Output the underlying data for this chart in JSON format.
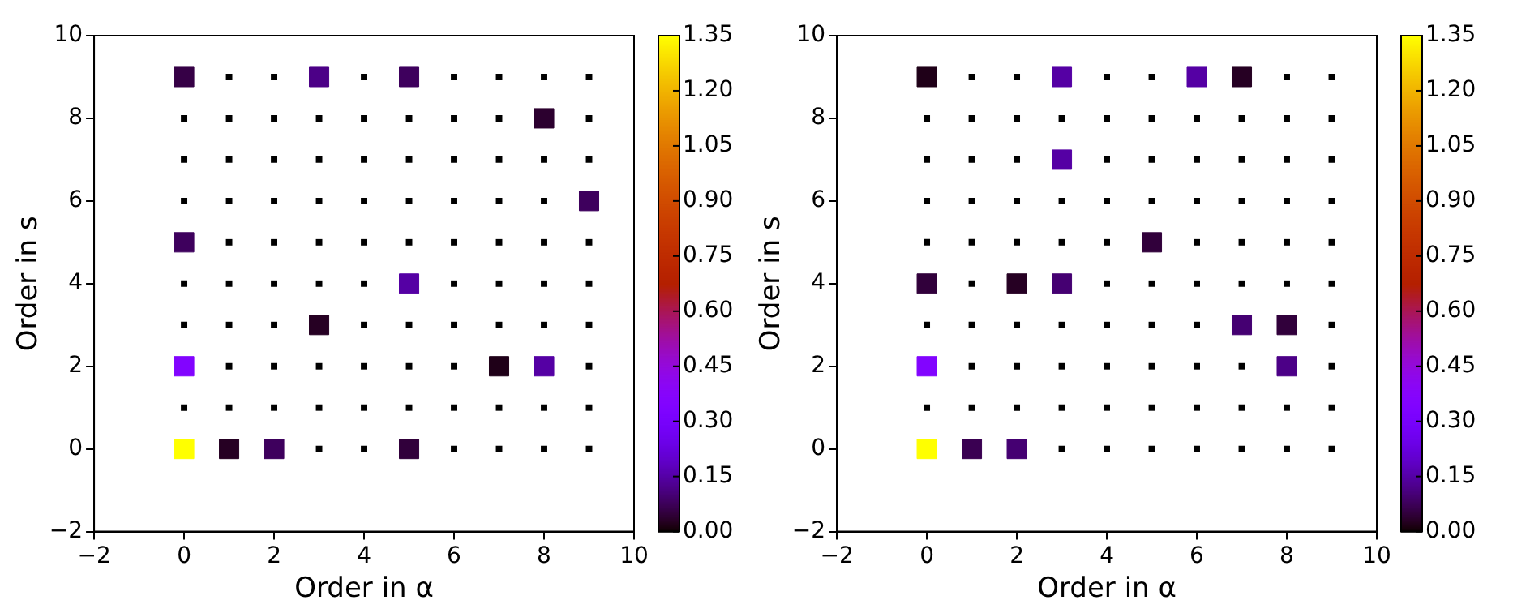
{
  "chart_data": [
    {
      "type": "scatter",
      "xlabel": "Order in α",
      "ylabel": "Order in s",
      "xlim": [
        -2,
        10
      ],
      "ylim": [
        -2,
        10
      ],
      "xticks": [
        -2,
        0,
        2,
        4,
        6,
        8,
        10
      ],
      "yticks": [
        -2,
        0,
        2,
        4,
        6,
        8,
        10
      ],
      "grid": false,
      "legend": false,
      "clim": [
        0,
        1.35
      ],
      "cticks": [
        {
          "value": 0,
          "label": "0.00"
        },
        {
          "value": 0.15,
          "label": "0.15"
        },
        {
          "value": 0.3,
          "label": "0.30"
        },
        {
          "value": 0.45,
          "label": "0.45"
        },
        {
          "value": 0.6,
          "label": "0.60"
        },
        {
          "value": 0.75,
          "label": "0.75"
        },
        {
          "value": 0.9,
          "label": "0.90"
        },
        {
          "value": 1.05,
          "label": "1.05"
        },
        {
          "value": 1.2,
          "label": "1.20"
        },
        {
          "value": 1.35,
          "label": "1.35"
        }
      ],
      "series": [
        {
          "color": "#000000",
          "marker": "square",
          "x": [
            3,
            4,
            6,
            7,
            8,
            9,
            0,
            1,
            2,
            3,
            4,
            5,
            6,
            7,
            8,
            9,
            1,
            2,
            3,
            4,
            5,
            6,
            9,
            0,
            1,
            2,
            4,
            5,
            6,
            7,
            8,
            9,
            0,
            1,
            2,
            3,
            4,
            6,
            7,
            8,
            9,
            1,
            2,
            3,
            4,
            5,
            6,
            7,
            8,
            9,
            0,
            1,
            2,
            3,
            4,
            5,
            6,
            7,
            8,
            0,
            1,
            2,
            3,
            4,
            5,
            6,
            7,
            8,
            9,
            0,
            1,
            2,
            3,
            4,
            5,
            6,
            7,
            9,
            1,
            2,
            4,
            6,
            7,
            8,
            9
          ],
          "values": [
            0,
            0,
            0,
            0,
            0,
            0,
            1,
            1,
            1,
            1,
            1,
            1,
            1,
            1,
            1,
            1,
            2,
            2,
            2,
            2,
            2,
            2,
            2,
            3,
            3,
            3,
            3,
            3,
            3,
            3,
            3,
            3,
            4,
            4,
            4,
            4,
            4,
            4,
            4,
            4,
            4,
            5,
            5,
            5,
            5,
            5,
            5,
            5,
            5,
            5,
            6,
            6,
            6,
            6,
            6,
            6,
            6,
            6,
            6,
            7,
            7,
            7,
            7,
            7,
            7,
            7,
            7,
            7,
            7,
            8,
            8,
            8,
            8,
            8,
            8,
            8,
            8,
            8,
            9,
            9,
            9,
            9,
            9,
            9,
            9
          ]
        },
        {
          "marker": "square",
          "x": [
            0,
            1,
            2,
            5,
            0,
            7,
            8,
            3,
            5,
            0,
            9,
            8,
            0,
            3,
            5
          ],
          "values": [
            0,
            0,
            0,
            0,
            2,
            2,
            2,
            3,
            4,
            5,
            6,
            8,
            9,
            9,
            9
          ],
          "cvalues": [
            1.35,
            0.03,
            0.08,
            0.05,
            0.35,
            0.02,
            0.15,
            0.03,
            0.15,
            0.08,
            0.08,
            0.04,
            0.06,
            0.12,
            0.08
          ],
          "colors": [
            "#ffff00",
            "#260023",
            "#3e005d",
            "#31003b",
            "#8204ff",
            "#1f0018",
            "#5500a4",
            "#260023",
            "#5500a4",
            "#3e005d",
            "#3e005d",
            "#2c002f",
            "#360046",
            "#4c0087",
            "#3e005d"
          ]
        }
      ]
    },
    {
      "type": "scatter",
      "xlabel": "Order in α",
      "ylabel": "Order in s",
      "xlim": [
        -2,
        10
      ],
      "ylim": [
        -2,
        10
      ],
      "xticks": [
        -2,
        0,
        2,
        4,
        6,
        8,
        10
      ],
      "yticks": [
        -2,
        0,
        2,
        4,
        6,
        8,
        10
      ],
      "grid": false,
      "legend": false,
      "clim": [
        0,
        1.35
      ],
      "cticks": [
        {
          "value": 0,
          "label": "0.00"
        },
        {
          "value": 0.15,
          "label": "0.15"
        },
        {
          "value": 0.3,
          "label": "0.30"
        },
        {
          "value": 0.45,
          "label": "0.45"
        },
        {
          "value": 0.6,
          "label": "0.60"
        },
        {
          "value": 0.75,
          "label": "0.75"
        },
        {
          "value": 0.9,
          "label": "0.90"
        },
        {
          "value": 1.05,
          "label": "1.05"
        },
        {
          "value": 1.2,
          "label": "1.20"
        },
        {
          "value": 1.35,
          "label": "1.35"
        }
      ],
      "series": [
        {
          "color": "#000000",
          "marker": "square",
          "x": [
            3,
            4,
            5,
            6,
            7,
            8,
            9,
            0,
            1,
            2,
            3,
            4,
            5,
            6,
            7,
            8,
            9,
            1,
            2,
            3,
            4,
            5,
            6,
            7,
            9,
            0,
            1,
            2,
            3,
            4,
            5,
            6,
            9,
            1,
            4,
            5,
            6,
            7,
            8,
            9,
            0,
            1,
            2,
            3,
            4,
            6,
            7,
            8,
            9,
            0,
            1,
            2,
            3,
            4,
            5,
            6,
            7,
            8,
            9,
            0,
            1,
            2,
            4,
            5,
            6,
            7,
            8,
            9,
            0,
            1,
            2,
            3,
            4,
            5,
            6,
            7,
            8,
            9,
            1,
            2,
            4,
            5,
            8,
            9
          ],
          "values": [
            0,
            0,
            0,
            0,
            0,
            0,
            0,
            1,
            1,
            1,
            1,
            1,
            1,
            1,
            1,
            1,
            1,
            2,
            2,
            2,
            2,
            2,
            2,
            2,
            2,
            3,
            3,
            3,
            3,
            3,
            3,
            3,
            3,
            4,
            4,
            4,
            4,
            4,
            4,
            4,
            5,
            5,
            5,
            5,
            5,
            5,
            5,
            5,
            5,
            6,
            6,
            6,
            6,
            6,
            6,
            6,
            6,
            6,
            6,
            7,
            7,
            7,
            7,
            7,
            7,
            7,
            7,
            7,
            8,
            8,
            8,
            8,
            8,
            8,
            8,
            8,
            8,
            8,
            9,
            9,
            9,
            9,
            9,
            9
          ]
        },
        {
          "marker": "square",
          "x": [
            0,
            1,
            2,
            0,
            8,
            7,
            8,
            0,
            2,
            3,
            5,
            3,
            0,
            3,
            6,
            7
          ],
          "values": [
            0,
            0,
            0,
            2,
            2,
            3,
            3,
            4,
            4,
            4,
            5,
            7,
            9,
            9,
            9,
            9
          ],
          "cvalues": [
            1.35,
            0.07,
            0.1,
            0.35,
            0.12,
            0.1,
            0.05,
            0.05,
            0.03,
            0.1,
            0.05,
            0.15,
            0.02,
            0.15,
            0.15,
            0.03
          ],
          "colors": [
            "#ffff00",
            "#3a0052",
            "#450072",
            "#8204ff",
            "#4c0087",
            "#450072",
            "#31003b",
            "#31003b",
            "#260023",
            "#450072",
            "#31003b",
            "#5500a4",
            "#1f0018",
            "#5500a4",
            "#5500a4",
            "#260023"
          ]
        }
      ]
    }
  ]
}
